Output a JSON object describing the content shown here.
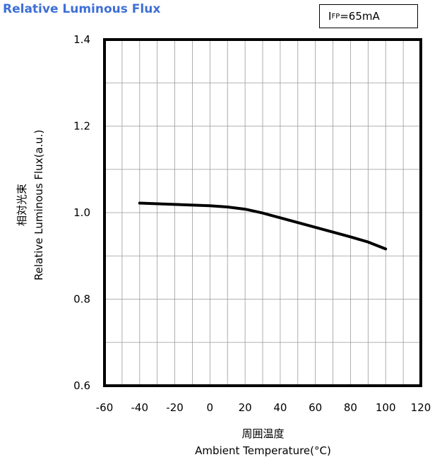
{
  "chart_data": {
    "type": "line",
    "title": "Relative Luminous Flux",
    "condition": {
      "symbol": "I",
      "subscript": "FP",
      "rest": "=65mA"
    },
    "xlabel_jp": "周囲温度",
    "xlabel": "Ambient Temperature(°C)",
    "ylabel_jp": "相対光束",
    "ylabel": "Relative Luminous Flux(a.u.)",
    "xlim": [
      -60,
      120
    ],
    "ylim": [
      0.6,
      1.4
    ],
    "xticks": [
      "-60",
      "-40",
      "-20",
      "0",
      "20",
      "40",
      "60",
      "80",
      "100",
      "120"
    ],
    "yticks": [
      "0.6",
      "0.8",
      "1.0",
      "1.2",
      "1.4"
    ],
    "grid": true,
    "series": [
      {
        "x": [
          -40,
          -20,
          0,
          10,
          20,
          30,
          40,
          50,
          60,
          70,
          80,
          90,
          100
        ],
        "y": [
          1.022,
          1.019,
          1.016,
          1.013,
          1.008,
          0.999,
          0.988,
          0.977,
          0.966,
          0.955,
          0.944,
          0.932,
          0.916
        ]
      }
    ]
  },
  "colors": {
    "title": "#3d6fd6",
    "grid": "#9a9a9a",
    "frame": "#000000",
    "line": "#000000"
  }
}
